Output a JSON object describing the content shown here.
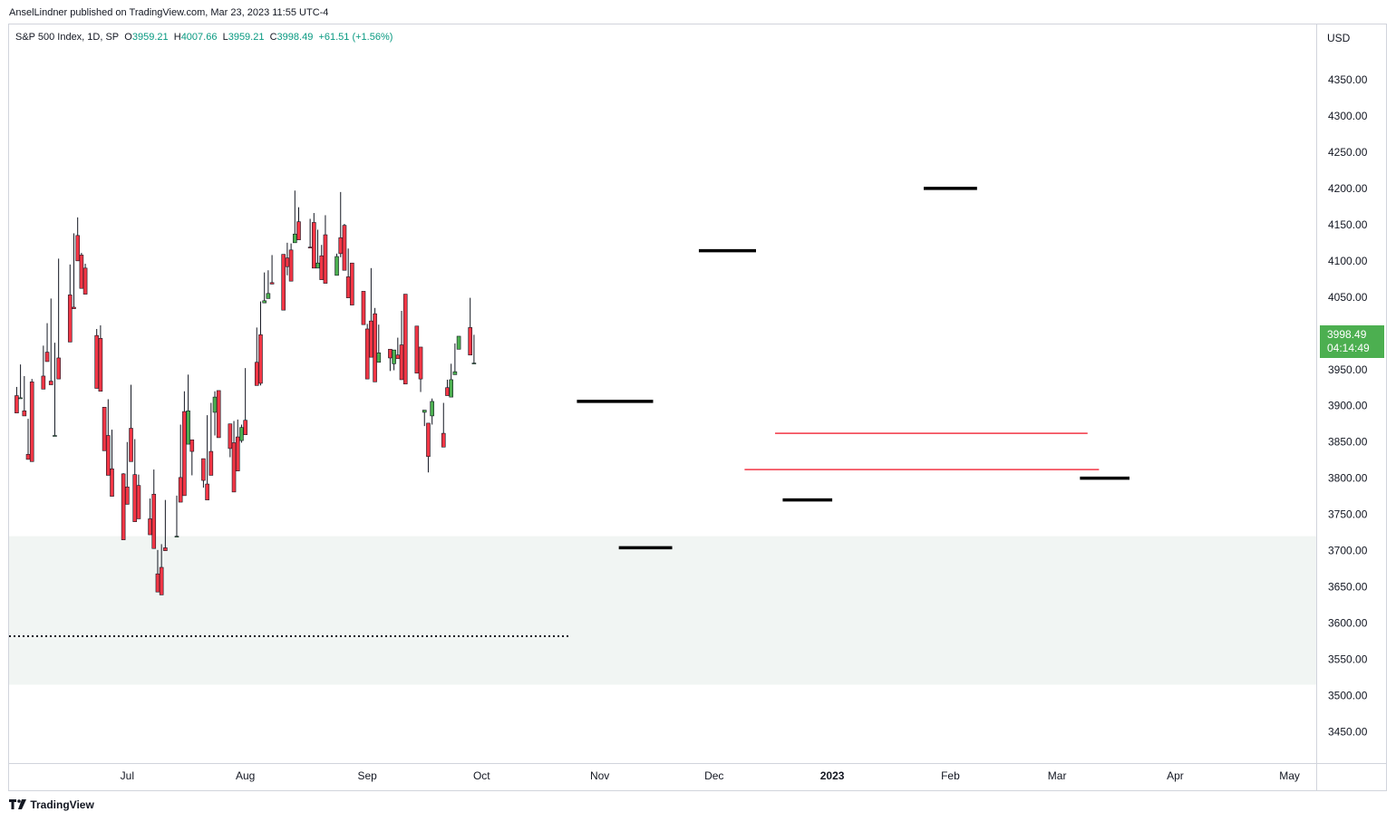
{
  "header": {
    "publisher_text": "AnselLindner published on TradingView.com, Mar 23, 2023 11:55 UTC-4"
  },
  "legend": {
    "title": "S&P 500 Index, 1D, SP",
    "o_label": "O",
    "o_value": "3959.21",
    "h_label": "H",
    "h_value": "4007.66",
    "l_label": "L",
    "l_value": "3959.21",
    "c_label": "C",
    "c_value": "3998.49",
    "change": "+61.51 (+1.56%)"
  },
  "price_axis": {
    "currency": "USD",
    "current_price": "3998.49",
    "countdown": "04:14:49"
  },
  "footer": {
    "brand": "TradingView"
  },
  "colors": {
    "up": "#4caf50",
    "down": "#f23645",
    "zone": "#f1f5f3",
    "level_line": "#f23645",
    "marker": "#000000",
    "price_label_bg": "#4caf50"
  },
  "chart_data": {
    "type": "candlestick",
    "title": "S&P 500 Index, 1D, SP",
    "ylabel": "USD",
    "ylim": [
      3420,
      4420
    ],
    "y_ticks": [
      "3450.00",
      "3500.00",
      "3550.00",
      "3600.00",
      "3650.00",
      "3700.00",
      "3750.00",
      "3800.00",
      "3850.00",
      "3900.00",
      "3950.00",
      "4000.00",
      "4050.00",
      "4100.00",
      "4150.00",
      "4200.00",
      "4250.00",
      "4300.00",
      "4350.00"
    ],
    "x_ticks": [
      {
        "label": "Jul",
        "day": 18,
        "bold": false
      },
      {
        "label": "Aug",
        "day": 49,
        "bold": false
      },
      {
        "label": "Sep",
        "day": 81,
        "bold": false
      },
      {
        "label": "Oct",
        "day": 111,
        "bold": false
      },
      {
        "label": "Nov",
        "day": 142,
        "bold": false
      },
      {
        "label": "Dec",
        "day": 172,
        "bold": false
      },
      {
        "label": "2023",
        "day": 203,
        "bold": true
      },
      {
        "label": "Feb",
        "day": 234,
        "bold": false
      },
      {
        "label": "Mar",
        "day": 262,
        "bold": false
      },
      {
        "label": "Apr",
        "day": 293,
        "bold": false
      },
      {
        "label": "May",
        "day": 323,
        "bold": false
      }
    ],
    "x_day_range": [
      -13,
      330
    ],
    "candles": [
      [
        3914,
        3926,
        3926,
        3890
      ],
      [
        3911,
        3957,
        3953,
        3911
      ],
      [
        3893,
        3941,
        3914,
        3886
      ],
      [
        3833,
        3882,
        3827,
        3826
      ],
      [
        3933,
        3937,
        3841,
        3823
      ],
      [
        3941,
        3983,
        3977,
        3923
      ],
      [
        3974,
        4014,
        3975,
        3961
      ],
      [
        3934,
        4048,
        4007,
        3929
      ],
      [
        3858,
        3987,
        3966,
        3859
      ],
      [
        3966,
        4096,
        4103,
        3937
      ],
      [
        4053,
        4095,
        4034,
        3988
      ],
      [
        4036,
        4138,
        4132,
        4034
      ],
      [
        4135,
        4160,
        4128,
        4100
      ],
      [
        4108,
        4111,
        4092,
        4062
      ],
      [
        4090,
        4096,
        4070,
        4054
      ],
      [
        3997,
        4006,
        3980,
        3924
      ],
      [
        3993,
        4011,
        3945,
        3920
      ],
      [
        3898,
        3898,
        3850,
        3838
      ],
      [
        3859,
        3909,
        3822,
        3804
      ],
      [
        3813,
        3867,
        3785,
        3775
      ],
      [
        3806,
        3807,
        3757,
        3715
      ],
      [
        3788,
        3783,
        3850,
        3764
      ],
      [
        3869,
        3929,
        3848,
        3823
      ],
      [
        3805,
        3854,
        3821,
        3740
      ],
      [
        3790,
        3805,
        3805,
        3744
      ],
      [
        3744,
        3767,
        3772,
        3722
      ],
      [
        3778,
        3781,
        3812,
        3703
      ],
      [
        3668,
        3701,
        3691,
        3643
      ],
      [
        3677,
        3682,
        3709,
        3639
      ],
      [
        3704,
        3768,
        3770,
        3700
      ],
      [
        3719,
        3763,
        3776,
        3720
      ],
      [
        3801,
        3802,
        3874,
        3767
      ],
      [
        3892,
        3918,
        3920,
        3776
      ],
      [
        3847,
        3943,
        3851,
        3893
      ],
      [
        3853,
        3837,
        3804,
        3837
      ],
      [
        3827,
        3787,
        3808,
        3797
      ],
      [
        3792,
        3887,
        3805,
        3770
      ],
      [
        3837,
        3904,
        3879,
        3804
      ],
      [
        3891,
        3920,
        3859,
        3912
      ],
      [
        3921,
        3868,
        3872,
        3856
      ],
      [
        3875,
        3829,
        3857,
        3841
      ],
      [
        3849,
        3865,
        3879,
        3781
      ],
      [
        3857,
        3881,
        3875,
        3810
      ],
      [
        3852,
        3849,
        3874,
        3870
      ],
      [
        3880,
        3911,
        3952,
        3860
      ],
      [
        3960,
        3968,
        4008,
        3928
      ],
      [
        3998,
        3928,
        4044,
        3931
      ],
      [
        4042,
        4057,
        4084,
        4045
      ],
      [
        4048,
        4087,
        4086,
        4055
      ],
      [
        4070,
        4082,
        4108,
        4068
      ],
      [
        4109,
        4085,
        4097,
        4032
      ],
      [
        4104,
        4080,
        4125,
        4092
      ],
      [
        4115,
        4101,
        4124,
        4072
      ],
      [
        4125,
        4197,
        4181,
        4137
      ],
      [
        4154,
        4172,
        4174,
        4129
      ],
      [
        4119,
        4158,
        4148,
        4118
      ],
      [
        4153,
        4148,
        4166,
        4090
      ],
      [
        4090,
        4143,
        4131,
        4097
      ],
      [
        4107,
        4115,
        4122,
        4074
      ],
      [
        4136,
        4138,
        4163,
        4069
      ],
      [
        4080,
        4105,
        4110,
        4106
      ],
      [
        4132,
        4105,
        4195,
        4110
      ],
      [
        4149,
        4151,
        4115,
        4087
      ],
      [
        4078,
        4098,
        4117,
        4049
      ],
      [
        4097,
        4061,
        4092,
        4039
      ],
      [
        4058,
        4029,
        4028,
        4012
      ],
      [
        4006,
        3993,
        4013,
        3937
      ],
      [
        4017,
        4005,
        4090,
        3967
      ],
      [
        4027,
        4000,
        4035,
        3933
      ],
      [
        3960,
        3984,
        4012,
        3973
      ],
      [
        3978,
        3975,
        3948,
        3966
      ],
      [
        3958,
        3972,
        3949,
        3977
      ],
      [
        3970,
        3994,
        3967,
        3965
      ],
      [
        3984,
        4031,
        4024,
        3936
      ],
      [
        4054,
        4043,
        4054,
        3930
      ],
      [
        4010,
        3948,
        3965,
        3945
      ],
      [
        3981,
        3919,
        3956,
        3937
      ],
      [
        3891,
        3872,
        3882,
        3894
      ],
      [
        3876,
        3808,
        3853,
        3830
      ],
      [
        3886,
        3910,
        3874,
        3906
      ],
      [
        3862,
        3867,
        3904,
        3843
      ],
      [
        3925,
        3936,
        3936,
        3914
      ],
      [
        3912,
        3958,
        3923,
        3936
      ],
      [
        3943,
        3986,
        3956,
        3947
      ],
      [
        3978,
        3979,
        3992,
        3996
      ],
      [
        4008,
        4049,
        4002,
        3970
      ],
      [
        3958,
        3983,
        3998,
        3959
      ]
    ],
    "current_price": 3998.49,
    "zone": {
      "from": 3515,
      "to": 3720
    },
    "dotted_level": {
      "value": 3582,
      "from_day": -13,
      "to_day": 134
    },
    "red_levels": [
      {
        "value": 3862,
        "from_day": 188,
        "to_day": 270
      },
      {
        "value": 3812,
        "from_day": 180,
        "to_day": 273
      }
    ],
    "markers": [
      {
        "value": 3906,
        "from_day": 136,
        "to_day": 156
      },
      {
        "value": 3704,
        "from_day": 147,
        "to_day": 161
      },
      {
        "value": 4114,
        "from_day": 168,
        "to_day": 183
      },
      {
        "value": 3770,
        "from_day": 190,
        "to_day": 203
      },
      {
        "value": 4200,
        "from_day": 227,
        "to_day": 241
      },
      {
        "value": 3800,
        "from_day": 268,
        "to_day": 281
      }
    ]
  }
}
